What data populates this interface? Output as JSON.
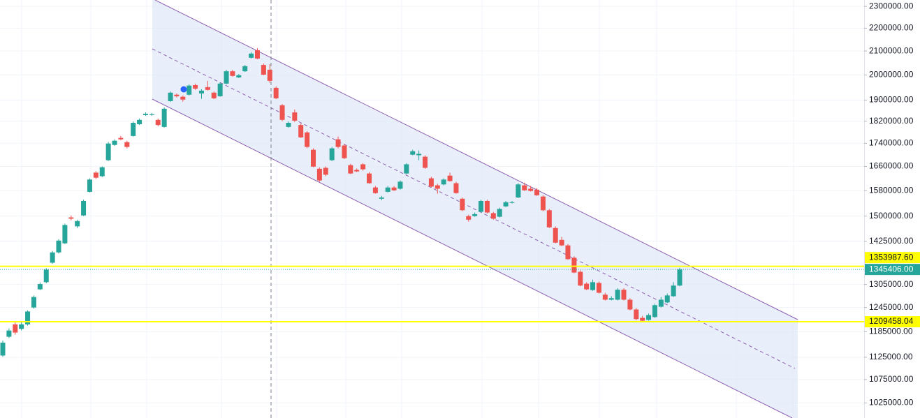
{
  "chart_data": {
    "type": "candlestick",
    "log_scale": true,
    "grid": true,
    "up_color": "#26a69a",
    "down_color": "#ef5350",
    "ylim": [
      994000,
      2330000
    ],
    "yticks": [
      {
        "value": 2300000,
        "label": "2300000.00"
      },
      {
        "value": 2200000,
        "label": "2200000.00"
      },
      {
        "value": 2100000,
        "label": "2100000.00"
      },
      {
        "value": 2000000,
        "label": "2000000.00"
      },
      {
        "value": 1900000,
        "label": "1900000.00"
      },
      {
        "value": 1820000,
        "label": "1820000.00"
      },
      {
        "value": 1740000,
        "label": "1740000.00"
      },
      {
        "value": 1660000,
        "label": "1660000.00"
      },
      {
        "value": 1580000,
        "label": "1580000.00"
      },
      {
        "value": 1500000,
        "label": "1500000.00"
      },
      {
        "value": 1425000,
        "label": "1425000.00"
      },
      {
        "value": 1305000,
        "label": "1305000.00"
      },
      {
        "value": 1245000,
        "label": "1245000.00"
      },
      {
        "value": 1185000,
        "label": "1185000.00"
      },
      {
        "value": 1125000,
        "label": "1125000.00"
      },
      {
        "value": 1075000,
        "label": "1075000.00"
      },
      {
        "value": 1025000,
        "label": "1025000.00"
      }
    ],
    "open": [
      1129000,
      1173000,
      1203000,
      1192000,
      1203000,
      1245000,
      1292000,
      1311000,
      1364000,
      1393000,
      1419000,
      1496000,
      1469000,
      1502000,
      1576000,
      1639000,
      1627000,
      1681000,
      1734000,
      1759000,
      1744000,
      1766000,
      1809000,
      1843000,
      1843000,
      1825000,
      1799000,
      1896000,
      1921000,
      1913000,
      1921000,
      1959000,
      1926000,
      1951000,
      1929000,
      1915000,
      1965000,
      2015000,
      1990000,
      2015000,
      2071000,
      2103000,
      2041000,
      2021000,
      1948000,
      1880000,
      1799000,
      1853000,
      1806000,
      1779000,
      1717000,
      1652000,
      1655000,
      1681000,
      1754000,
      1732000,
      1664000,
      1648000,
      1667000,
      1636000,
      1590000,
      1554000,
      1576000,
      1590000,
      1586000,
      1636000,
      1700000,
      1698000,
      1693000,
      1620000,
      1597000,
      1600000,
      1629000,
      1604000,
      1554000,
      1500000,
      1500000,
      1513000,
      1547000,
      1509000,
      1498000,
      1530000,
      1541000,
      1558000,
      1597000,
      1586000,
      1583000,
      1561000,
      1518000,
      1464000,
      1429000,
      1413000,
      1378000,
      1339000,
      1307000,
      1290000,
      1309000,
      1278000,
      1265000,
      1265000,
      1291000,
      1265000,
      1240000,
      1219000,
      1214000,
      1221000,
      1247000,
      1258000,
      1274000,
      1302000
    ],
    "high": [
      1164000,
      1193000,
      1209000,
      1208000,
      1238000,
      1276000,
      1310000,
      1349000,
      1397000,
      1431000,
      1477000,
      1502000,
      1489000,
      1551000,
      1620000,
      1644000,
      1660000,
      1744000,
      1754000,
      1766000,
      1749000,
      1819000,
      1830000,
      1853000,
      1851000,
      1830000,
      1872000,
      1934000,
      1926000,
      1918000,
      1962000,
      1965000,
      1942000,
      1976000,
      1934000,
      1970000,
      2021000,
      2021000,
      2004000,
      2041000,
      2095000,
      2112000,
      2047000,
      2044000,
      1954000,
      1885000,
      1819000,
      1864000,
      1812000,
      1784000,
      1722000,
      1657000,
      1660000,
      1727000,
      1764000,
      1737000,
      1669000,
      1653000,
      1671000,
      1641000,
      1595000,
      1563000,
      1595000,
      1595000,
      1613000,
      1671000,
      1717000,
      1715000,
      1698000,
      1625000,
      1602000,
      1620000,
      1639000,
      1609000,
      1558000,
      1504000,
      1511000,
      1551000,
      1551000,
      1513000,
      1526000,
      1547000,
      1547000,
      1604000,
      1606000,
      1595000,
      1588000,
      1565000,
      1522000,
      1469000,
      1438000,
      1417000,
      1382000,
      1343000,
      1311000,
      1318000,
      1313000,
      1283000,
      1274000,
      1295000,
      1295000,
      1269000,
      1244000,
      1224000,
      1230000,
      1255000,
      1272000,
      1281000,
      1311000,
      1350000
    ],
    "low": [
      1126000,
      1170000,
      1178000,
      1188000,
      1200000,
      1242000,
      1290000,
      1308000,
      1361000,
      1390000,
      1417000,
      1487000,
      1464000,
      1500000,
      1574000,
      1618000,
      1624000,
      1678000,
      1731000,
      1751000,
      1722000,
      1764000,
      1806000,
      1840000,
      1840000,
      1801000,
      1796000,
      1893000,
      1910000,
      1894000,
      1918000,
      1940000,
      1905000,
      1937000,
      1904000,
      1913000,
      1962000,
      1993000,
      1987000,
      2012000,
      2068000,
      2065000,
      1999000,
      1968000,
      1904000,
      1820000,
      1796000,
      1817000,
      1759000,
      1722000,
      1657000,
      1609000,
      1627000,
      1678000,
      1722000,
      1685000,
      1634000,
      1641000,
      1645000,
      1602000,
      1570000,
      1549000,
      1574000,
      1579000,
      1583000,
      1634000,
      1698000,
      1681000,
      1652000,
      1590000,
      1570000,
      1597000,
      1609000,
      1570000,
      1515000,
      1483000,
      1498000,
      1511000,
      1508000,
      1489000,
      1496000,
      1528000,
      1539000,
      1556000,
      1579000,
      1577000,
      1563000,
      1515000,
      1464000,
      1419000,
      1411000,
      1372000,
      1335000,
      1300000,
      1290000,
      1288000,
      1281000,
      1263000,
      1263000,
      1263000,
      1263000,
      1238000,
      1213000,
      1210000,
      1212000,
      1219000,
      1245000,
      1256000,
      1272000,
      1300000
    ],
    "close": [
      1159000,
      1188000,
      1183000,
      1203000,
      1235000,
      1272000,
      1306000,
      1345000,
      1393000,
      1427000,
      1473000,
      1492000,
      1485000,
      1547000,
      1616000,
      1622000,
      1657000,
      1739000,
      1749000,
      1754000,
      1727000,
      1814000,
      1825000,
      1848000,
      1846000,
      1806000,
      1867000,
      1929000,
      1915000,
      1902000,
      1957000,
      1945000,
      1937000,
      1940000,
      1907000,
      1965000,
      2015000,
      1996000,
      1999000,
      2036000,
      2089000,
      2068000,
      2001000,
      1976000,
      1907000,
      1825000,
      1814000,
      1822000,
      1761000,
      1727000,
      1659000,
      1613000,
      1632000,
      1722000,
      1727000,
      1688000,
      1636000,
      1643000,
      1650000,
      1604000,
      1572000,
      1558000,
      1590000,
      1581000,
      1609000,
      1667000,
      1712000,
      1703000,
      1655000,
      1593000,
      1586000,
      1616000,
      1611000,
      1572000,
      1518000,
      1489000,
      1506000,
      1547000,
      1511000,
      1492000,
      1522000,
      1543000,
      1543000,
      1600000,
      1581000,
      1579000,
      1565000,
      1518000,
      1466000,
      1421000,
      1413000,
      1374000,
      1337000,
      1302000,
      1292000,
      1311000,
      1283000,
      1265000,
      1269000,
      1291000,
      1265000,
      1240000,
      1216000,
      1212000,
      1226000,
      1251000,
      1265000,
      1276000,
      1302000,
      1345406
    ],
    "price_lines": [
      {
        "value": 1353987.6,
        "label": "1353987.60",
        "color": "#ffff00",
        "text_color": "#131722",
        "style": "solid"
      },
      {
        "value": 1345406,
        "label": "1345406.00",
        "color": "#26a69a",
        "text_color": "#ffffff",
        "style": "dotted"
      },
      {
        "value": 1209458.04,
        "label": "1209458.04",
        "color": "#ffff00",
        "text_color": "#131722",
        "style": "solid"
      }
    ]
  }
}
